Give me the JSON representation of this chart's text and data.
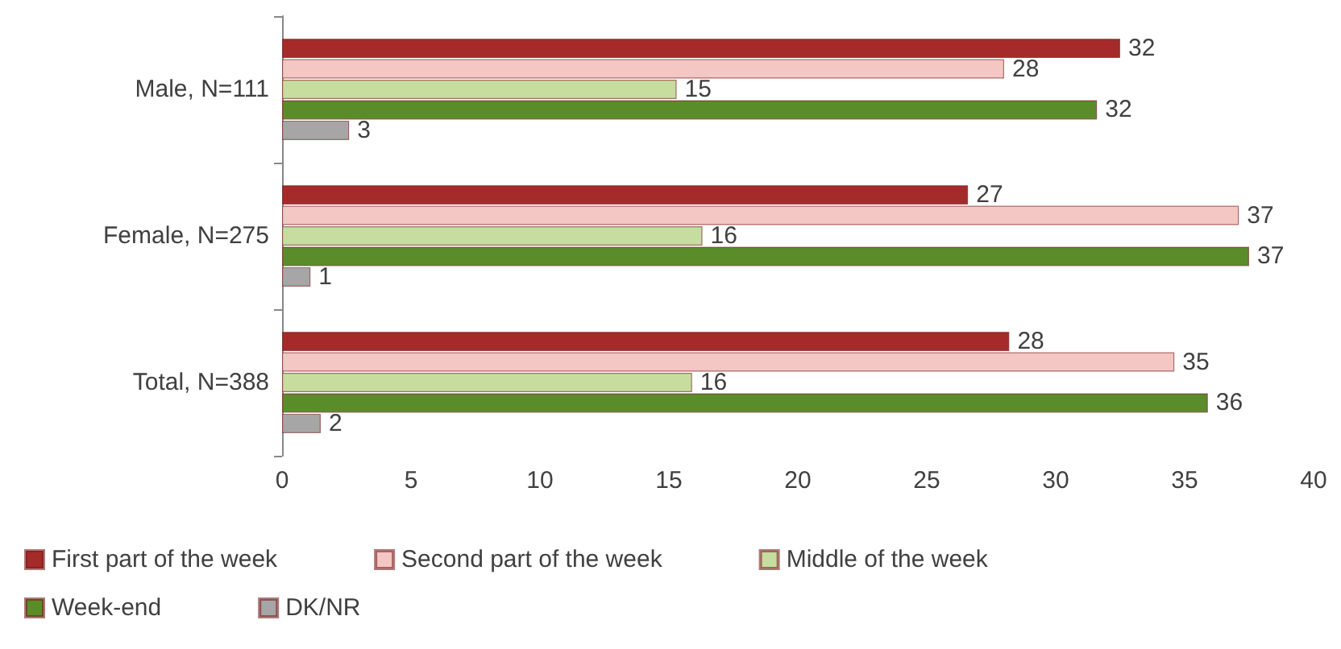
{
  "chart_data": {
    "type": "bar",
    "orientation": "horizontal",
    "categories": [
      "Male, N=111",
      "Female, N=275",
      "Total, N=388"
    ],
    "series": [
      {
        "name": "First part of the week",
        "color": "#a52a2a",
        "values": [
          32.5,
          26.6,
          28.2
        ],
        "value_labels": [
          "32",
          "27",
          "28"
        ]
      },
      {
        "name": "Second part of the week",
        "color": "#f4c6c4",
        "values": [
          28,
          37.1,
          34.6
        ],
        "value_labels": [
          "28",
          "37",
          "35"
        ]
      },
      {
        "name": "Middle of the week",
        "color": "#c6dd9f",
        "values": [
          15.3,
          16.3,
          15.9
        ],
        "value_labels": [
          "15",
          "16",
          "16"
        ]
      },
      {
        "name": "Week-end",
        "color": "#5b8c2a",
        "values": [
          31.6,
          37.5,
          35.9
        ],
        "value_labels": [
          "32",
          "37",
          "36"
        ]
      },
      {
        "name": "DK/NR",
        "color": "#a6a6a6",
        "values": [
          2.6,
          1.1,
          1.5
        ],
        "value_labels": [
          "3",
          "1",
          "2"
        ]
      }
    ],
    "xlim": [
      0,
      40
    ],
    "xticks": [
      0,
      5,
      10,
      15,
      20,
      25,
      30,
      35,
      40
    ],
    "grid": false,
    "legend": "bottom"
  }
}
